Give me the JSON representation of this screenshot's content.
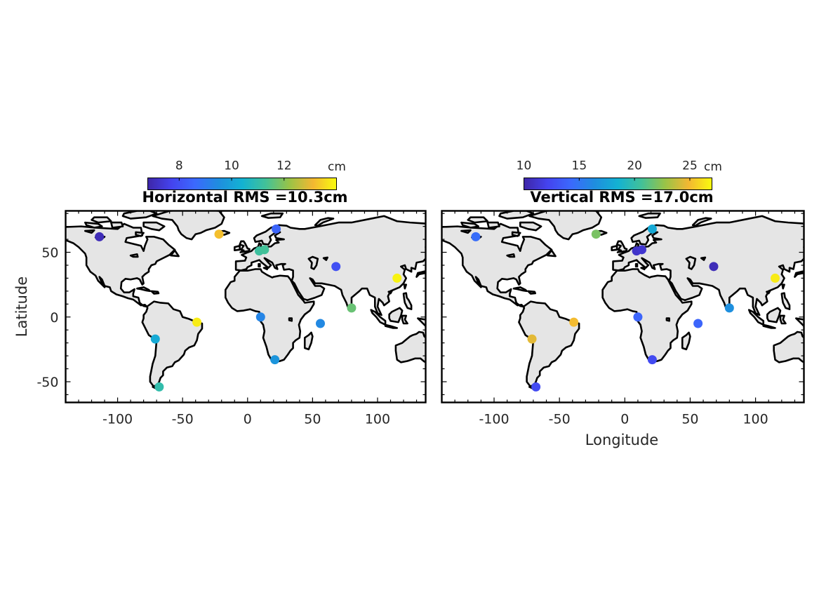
{
  "chart_data": [
    {
      "type": "scatter",
      "title": "Horizontal RMS =10.3cm",
      "xlabel": "",
      "ylabel": "Latitude",
      "xlim": [
        -140,
        137
      ],
      "ylim": [
        -66,
        82
      ],
      "xticks": [
        -100,
        -50,
        0,
        50,
        100
      ],
      "yticks": [
        -50,
        0,
        50
      ],
      "colorbar": {
        "label": "cm",
        "range": [
          6.8,
          14.0
        ],
        "ticks": [
          8,
          10,
          12
        ]
      },
      "points": [
        {
          "lon": -114,
          "lat": 62,
          "value": 7.0
        },
        {
          "lon": -22,
          "lat": 64,
          "value": 13.2
        },
        {
          "lon": 22,
          "lat": 68,
          "value": 8.5
        },
        {
          "lon": 9,
          "lat": 51,
          "value": 11.2
        },
        {
          "lon": 13,
          "lat": 52,
          "value": 11.3
        },
        {
          "lon": 68,
          "lat": 39,
          "value": 8.0
        },
        {
          "lon": 115,
          "lat": 30,
          "value": 13.9
        },
        {
          "lon": 80,
          "lat": 7,
          "value": 11.7
        },
        {
          "lon": -39,
          "lat": -4,
          "value": 13.8
        },
        {
          "lon": 10,
          "lat": 0,
          "value": 9.3
        },
        {
          "lon": 56,
          "lat": -5,
          "value": 9.4
        },
        {
          "lon": -71,
          "lat": -17,
          "value": 10.2
        },
        {
          "lon": 21,
          "lat": -33,
          "value": 9.7
        },
        {
          "lon": -68,
          "lat": -54,
          "value": 11.0
        }
      ]
    },
    {
      "type": "scatter",
      "title": "Vertical RMS =17.0cm",
      "xlabel": "Longitude",
      "ylabel": "",
      "xlim": [
        -140,
        137
      ],
      "ylim": [
        -66,
        82
      ],
      "xticks": [
        -100,
        -50,
        0,
        50,
        100
      ],
      "yticks": [],
      "colorbar": {
        "label": "cm",
        "range": [
          10,
          27
        ],
        "ticks": [
          10,
          15,
          20,
          25
        ]
      },
      "points": [
        {
          "lon": -114,
          "lat": 62,
          "value": 14.5
        },
        {
          "lon": -22,
          "lat": 64,
          "value": 22.0
        },
        {
          "lon": 21,
          "lat": 68,
          "value": 18.0
        },
        {
          "lon": 9,
          "lat": 51,
          "value": 11.0
        },
        {
          "lon": 13,
          "lat": 52,
          "value": 11.2
        },
        {
          "lon": 68,
          "lat": 39,
          "value": 10.5
        },
        {
          "lon": 115,
          "lat": 30,
          "value": 26.5
        },
        {
          "lon": 80,
          "lat": 7,
          "value": 16.5
        },
        {
          "lon": -39,
          "lat": -4,
          "value": 25.0
        },
        {
          "lon": 10,
          "lat": 0,
          "value": 14.0
        },
        {
          "lon": 56,
          "lat": -5,
          "value": 14.0
        },
        {
          "lon": -71,
          "lat": -17,
          "value": 24.5
        },
        {
          "lon": 21,
          "lat": -33,
          "value": 12.5
        },
        {
          "lon": -68,
          "lat": -54,
          "value": 12.5
        }
      ]
    }
  ]
}
